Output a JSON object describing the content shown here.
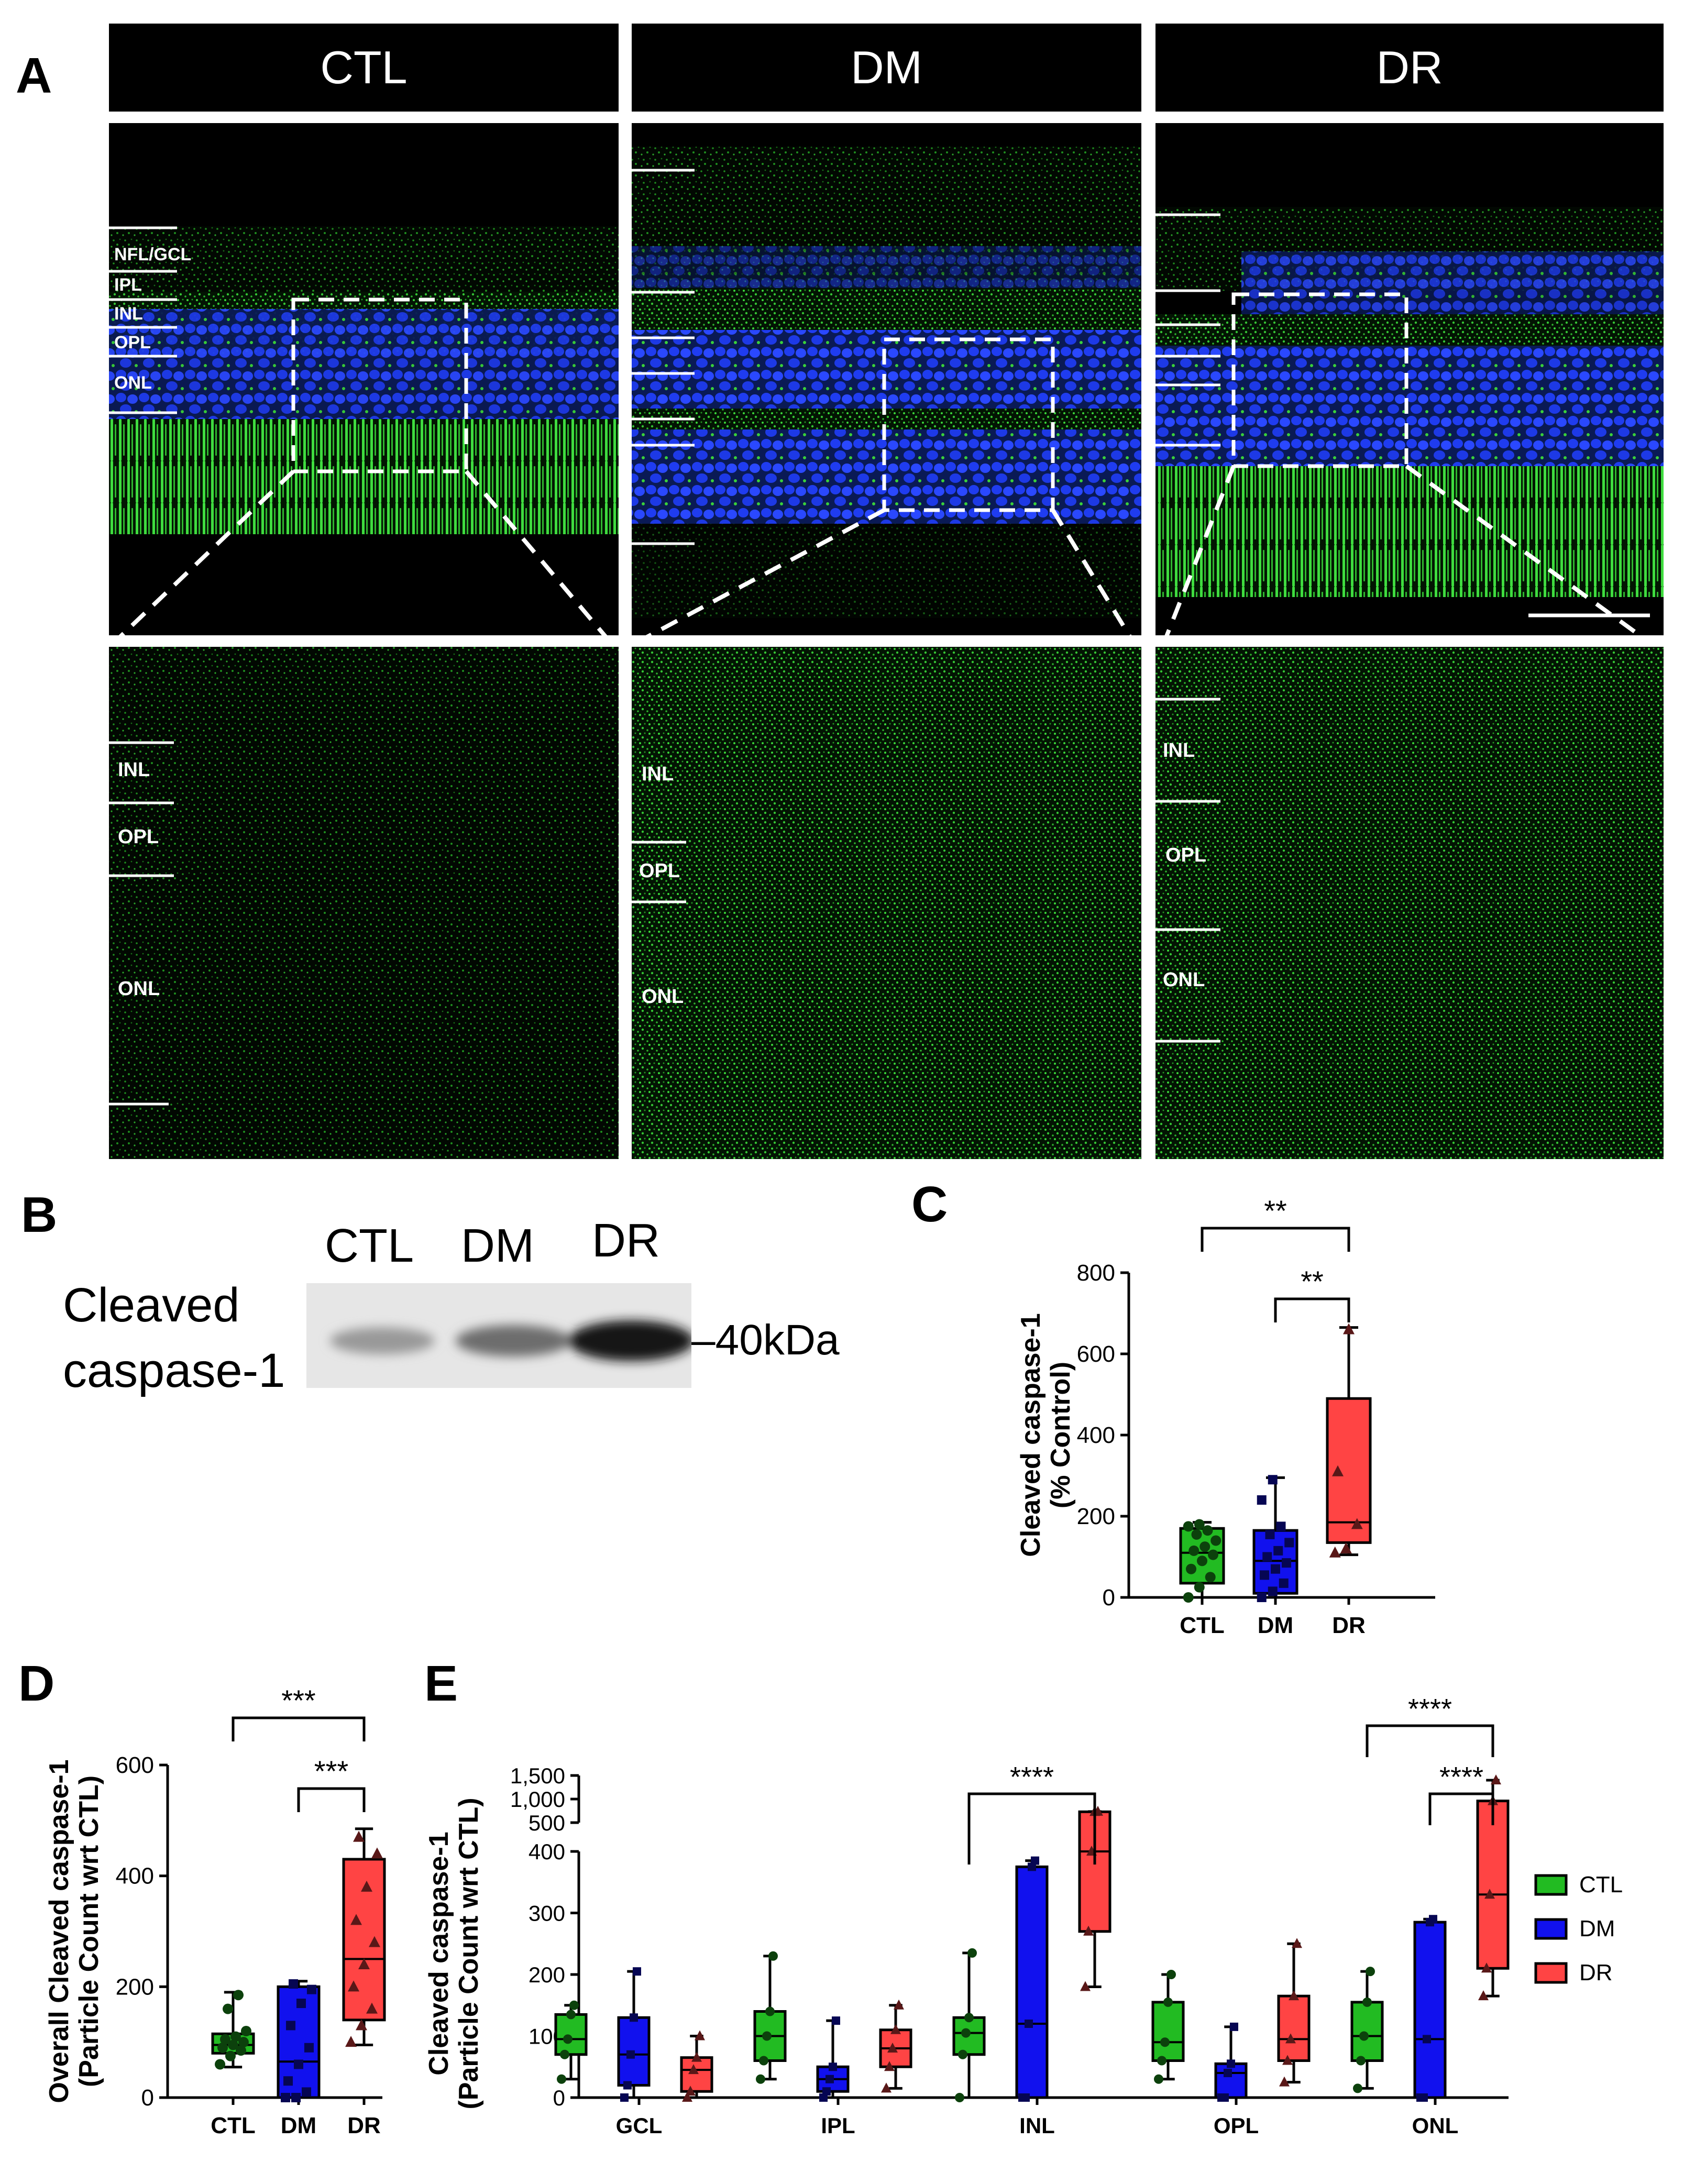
{
  "panel_a": {
    "letter": "A",
    "columns": [
      "CTL",
      "DM",
      "DR"
    ],
    "layers_top": [
      "NFL/GCL",
      "IPL",
      "INL",
      "OPL",
      "ONL"
    ],
    "layers_bottom": [
      "INL",
      "OPL",
      "ONL"
    ],
    "colors": {
      "nuclei": "#1a3cff",
      "caspase": "#2fd62f",
      "background": "#000000"
    }
  },
  "panel_b": {
    "letter": "B",
    "lanes": [
      "CTL",
      "DM",
      "DR"
    ],
    "protein_line1": "Cleaved",
    "protein_line2": "caspase-1",
    "marker": "–40kDa",
    "band_intensity": [
      0.35,
      0.55,
      0.95
    ]
  },
  "panel_c": {
    "letter": "C"
  },
  "panel_d": {
    "letter": "D"
  },
  "panel_e": {
    "letter": "E"
  },
  "chart_data": [
    {
      "id": "C",
      "type": "box",
      "ylabel_line1": "Cleaved caspase-1",
      "ylabel_line2": "(% Control)",
      "ylim": [
        0,
        800
      ],
      "yticks": [
        0,
        200,
        400,
        600,
        800
      ],
      "categories": [
        "CTL",
        "DM",
        "DR"
      ],
      "colors": [
        "#22bb22",
        "#1111ee",
        "#ff4444"
      ],
      "boxes": [
        {
          "min": 0,
          "q1": 35,
          "median": 110,
          "q3": 170,
          "max": 185
        },
        {
          "min": 0,
          "q1": 10,
          "median": 90,
          "q3": 165,
          "max": 295
        },
        {
          "min": 105,
          "q1": 135,
          "median": 185,
          "q3": 490,
          "max": 665
        }
      ],
      "points": [
        [
          0,
          25,
          50,
          70,
          90,
          105,
          115,
          125,
          140,
          155,
          165,
          175,
          180
        ],
        [
          0,
          15,
          35,
          55,
          70,
          85,
          100,
          115,
          135,
          155,
          175,
          240,
          290
        ],
        [
          110,
          120,
          180,
          310,
          660
        ]
      ],
      "sig": [
        {
          "from": 0,
          "to": 2,
          "label": "**"
        },
        {
          "from": 1,
          "to": 2,
          "label": "**"
        }
      ]
    },
    {
      "id": "D",
      "type": "box",
      "ylabel_line1": "Overall Cleaved caspase-1",
      "ylabel_line2": "(Particle Count wrt CTL)",
      "ylim": [
        0,
        600
      ],
      "yticks": [
        0,
        200,
        400,
        600
      ],
      "categories": [
        "CTL",
        "DM",
        "DR"
      ],
      "colors": [
        "#22bb22",
        "#1111ee",
        "#ff4444"
      ],
      "boxes": [
        {
          "min": 55,
          "q1": 80,
          "median": 95,
          "q3": 115,
          "max": 190
        },
        {
          "min": 0,
          "q1": 0,
          "median": 65,
          "q3": 200,
          "max": 210
        },
        {
          "min": 95,
          "q1": 140,
          "median": 250,
          "q3": 430,
          "max": 485
        }
      ],
      "points": [
        [
          60,
          75,
          85,
          90,
          95,
          100,
          105,
          110,
          120,
          160,
          185
        ],
        [
          0,
          0,
          10,
          30,
          60,
          90,
          130,
          170,
          195,
          205
        ],
        [
          100,
          130,
          160,
          200,
          240,
          280,
          320,
          380,
          440,
          470
        ]
      ],
      "sig": [
        {
          "from": 0,
          "to": 2,
          "label": "***"
        },
        {
          "from": 1,
          "to": 2,
          "label": "***"
        }
      ]
    },
    {
      "id": "E",
      "type": "box",
      "ylabel_line1": "Cleaved caspase-1",
      "ylabel_line2": "(Particle Count wrt CTL)",
      "yticks_lower": [
        0,
        100,
        200,
        300,
        400
      ],
      "yticks_upper": [
        "500",
        "1,000",
        "1,500"
      ],
      "categories": [
        "GCL",
        "IPL",
        "INL",
        "OPL",
        "ONL"
      ],
      "legend": [
        "CTL",
        "DM",
        "DR"
      ],
      "colors": [
        "#22bb22",
        "#1111ee",
        "#ff4444"
      ],
      "boxes": [
        [
          {
            "min": 30,
            "q1": 70,
            "median": 95,
            "q3": 135,
            "max": 150
          },
          {
            "min": 0,
            "q1": 20,
            "median": 70,
            "q3": 130,
            "max": 205
          },
          {
            "min": 0,
            "q1": 10,
            "median": 45,
            "q3": 65,
            "max": 100
          }
        ],
        [
          {
            "min": 30,
            "q1": 60,
            "median": 100,
            "q3": 140,
            "max": 230
          },
          {
            "min": 0,
            "q1": 10,
            "median": 30,
            "q3": 50,
            "max": 125
          },
          {
            "min": 15,
            "q1": 50,
            "median": 80,
            "q3": 110,
            "max": 150
          }
        ],
        [
          {
            "min": 0,
            "q1": 70,
            "median": 105,
            "q3": 130,
            "max": 235
          },
          {
            "min": 0,
            "q1": 0,
            "median": 120,
            "q3": 375,
            "max": 385
          },
          {
            "min": 180,
            "q1": 270,
            "median": 400,
            "q3": 730,
            "max": 735
          }
        ],
        [
          {
            "min": 30,
            "q1": 60,
            "median": 90,
            "q3": 155,
            "max": 200
          },
          {
            "min": 0,
            "q1": 0,
            "median": 40,
            "q3": 55,
            "max": 115
          },
          {
            "min": 25,
            "q1": 60,
            "median": 95,
            "q3": 165,
            "max": 250
          }
        ],
        [
          {
            "min": 15,
            "q1": 60,
            "median": 100,
            "q3": 155,
            "max": 205
          },
          {
            "min": 0,
            "q1": 0,
            "median": 95,
            "q3": 285,
            "max": 290
          },
          {
            "min": 165,
            "q1": 210,
            "median": 330,
            "q3": 960,
            "max": 1400
          }
        ]
      ],
      "sig": [
        {
          "group": 2,
          "from": 0,
          "to": 2,
          "label": "****",
          "level": 0
        },
        {
          "group": 4,
          "from": 0,
          "to": 2,
          "label": "****",
          "level": 1
        },
        {
          "group": 4,
          "from": 1,
          "to": 2,
          "label": "****",
          "level": 0
        }
      ]
    }
  ]
}
